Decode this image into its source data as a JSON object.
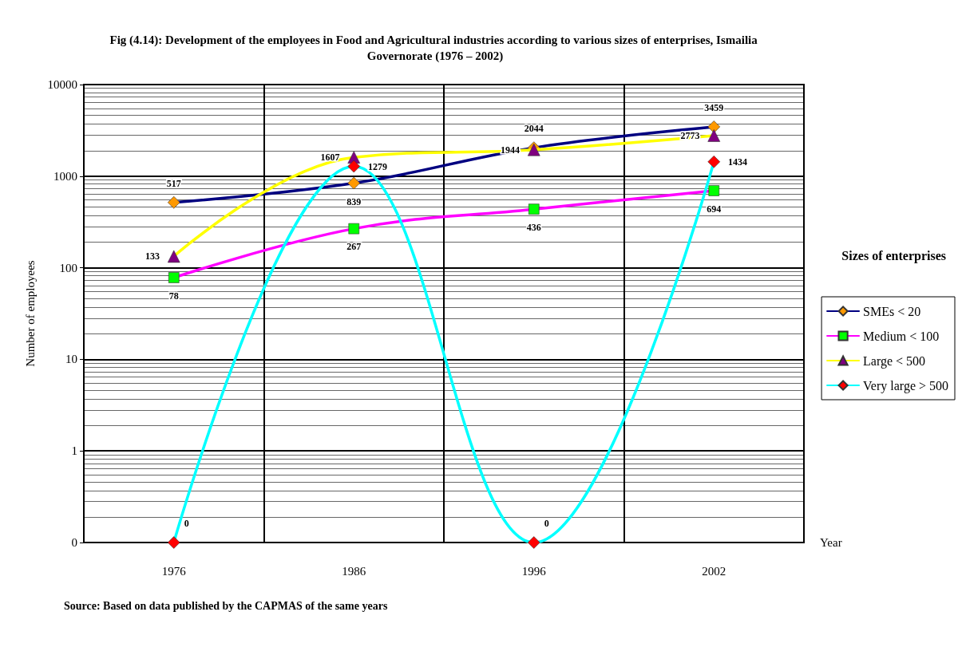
{
  "chart_data": {
    "type": "line",
    "title": "Fig (4.14): Development of the employees in Food and Agricultural industries according to various sizes of enterprises, Ismailia Governorate (1976 – 2002)",
    "xlabel": "Year",
    "ylabel": "Number of employees",
    "legend_title": "Sizes of enterprises",
    "annotations": [
      "Source: Based on data published by the CAPMAS of the same years"
    ],
    "categories": [
      "1976",
      "1986",
      "1996",
      "2002"
    ],
    "series": [
      {
        "name": "SMEs < 20",
        "color": "#000080",
        "colors": [
          "#ff9900",
          "#ff9900",
          "#ff9900",
          "#ff9900"
        ],
        "marker": "diamond",
        "values": [
          517,
          839,
          2044,
          3459
        ]
      },
      {
        "name": "Medium < 100",
        "color": "#ff00ff",
        "colors": [
          "#00ff00",
          "#00ff00",
          "#00ff00",
          "#00ff00"
        ],
        "marker": "square",
        "values": [
          78,
          267,
          436,
          694
        ]
      },
      {
        "name": "Large < 500",
        "color": "#ffff00",
        "colors": [
          "#800080",
          "#800080",
          "#800080",
          "#800080"
        ],
        "marker": "triangle",
        "values": [
          133,
          1607,
          1944,
          2773
        ]
      },
      {
        "name": "Very large > 500",
        "color": "#00ffff",
        "colors": [
          "#ff0000",
          "#ff0000",
          "#ff0000",
          "#ff0000"
        ],
        "marker": "diamond",
        "values": [
          0.1,
          1279,
          0.1,
          1434
        ],
        "value_labels": [
          "0",
          "1279",
          "0",
          "1434"
        ]
      }
    ],
    "log": "y",
    "ylim": [
      0.1,
      10000
    ],
    "yticks": [
      {
        "value": 0.1,
        "label": "0"
      },
      1,
      10,
      100,
      1000,
      10000
    ],
    "grid": true,
    "legend": "right",
    "data_labels": true,
    "line_style": "solid"
  }
}
